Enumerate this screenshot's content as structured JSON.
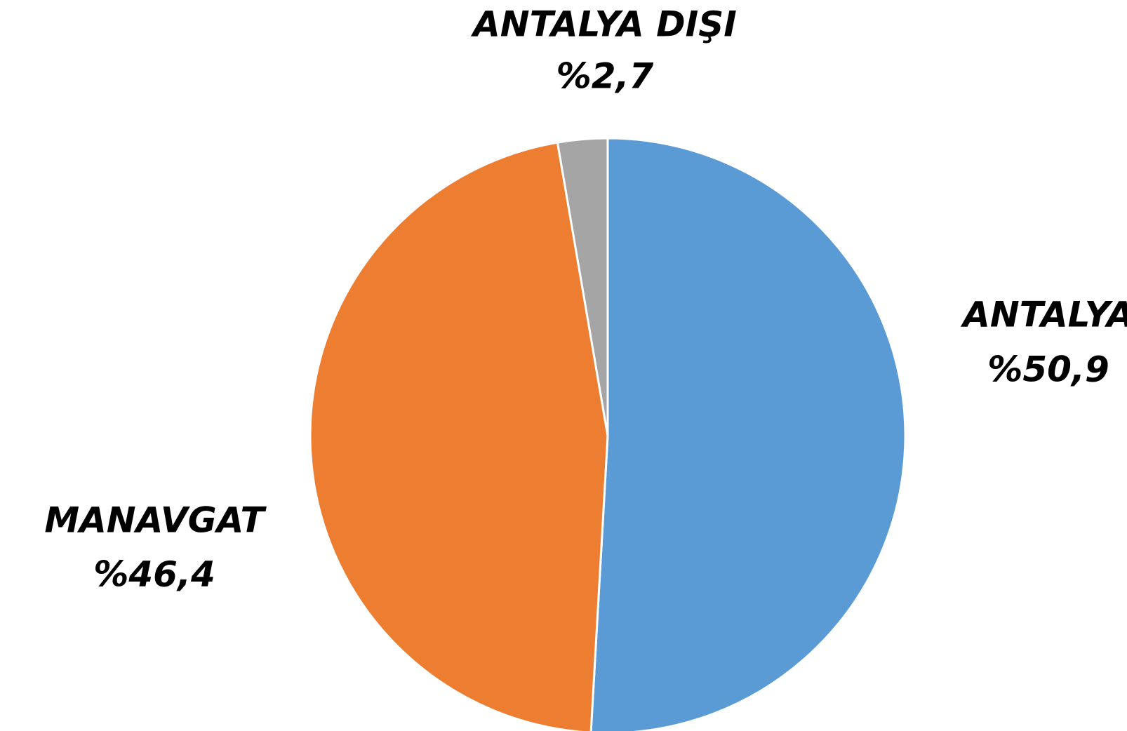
{
  "chart_data": {
    "type": "pie",
    "categories": [
      "ANTALYA",
      "MANAVGAT",
      "ANTALYA DIŞI"
    ],
    "values": [
      50.9,
      46.4,
      2.7
    ],
    "value_labels": [
      "%50,9",
      "%46,4",
      "%2,7"
    ],
    "colors": [
      "#5b9bd5",
      "#ed7d31",
      "#a5a5a5"
    ]
  }
}
